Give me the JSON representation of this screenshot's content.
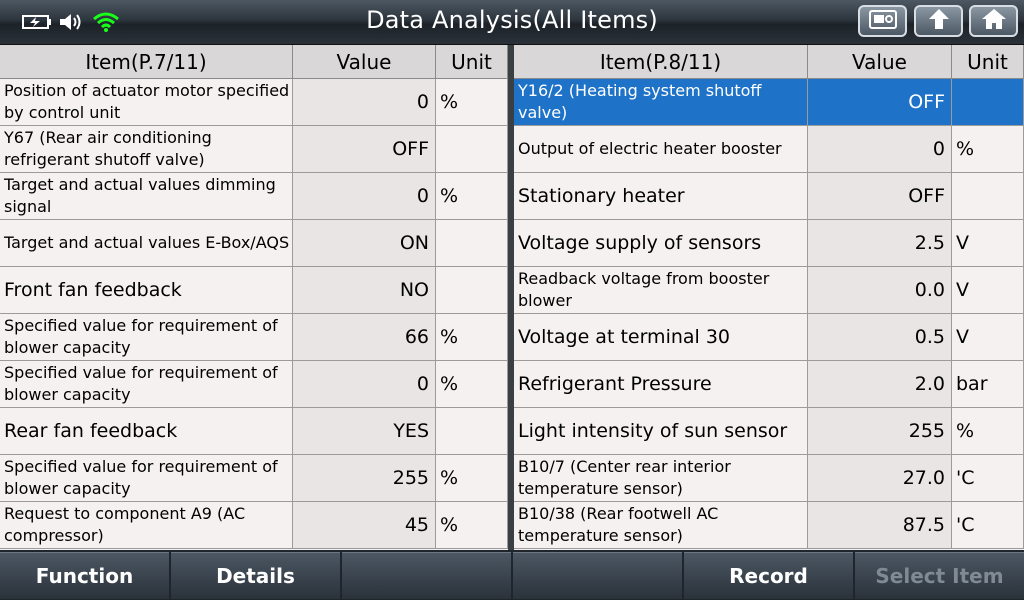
{
  "title": "Data Analysis(All Items)",
  "status": {
    "battery_icon": "battery-charging-icon",
    "volume_icon": "speaker-icon",
    "wifi_icon": "wifi-icon",
    "wifi_color": "#1aff1a"
  },
  "toolbar": {
    "screenshot_icon": "camera-icon",
    "back_icon": "up-arrow-icon",
    "home_icon": "home-icon"
  },
  "left_table": {
    "headers": {
      "item": "Item(P.7/11)",
      "value": "Value",
      "unit": "Unit"
    },
    "rows": [
      {
        "item": "Position of actuator motor specified by control unit",
        "value": "0",
        "unit": "%"
      },
      {
        "item": "Y67 (Rear air conditioning refrigerant shutoff valve)",
        "value": "OFF",
        "unit": ""
      },
      {
        "item": "Target and actual values dimming signal",
        "value": "0",
        "unit": "%"
      },
      {
        "item": "Target and actual values E-Box/AQS",
        "value": "ON",
        "unit": ""
      },
      {
        "item": "Front fan feedback",
        "value": "NO",
        "unit": ""
      },
      {
        "item": "Specified value for requirement of blower capacity",
        "value": "66",
        "unit": "%"
      },
      {
        "item": "Specified value for requirement of blower capacity",
        "value": "0",
        "unit": "%"
      },
      {
        "item": "Rear fan feedback",
        "value": "YES",
        "unit": ""
      },
      {
        "item": "Specified value for requirement of blower capacity",
        "value": "255",
        "unit": "%"
      },
      {
        "item": "Request to component A9 (AC compressor)",
        "value": "45",
        "unit": "%"
      }
    ]
  },
  "right_table": {
    "headers": {
      "item": "Item(P.8/11)",
      "value": "Value",
      "unit": "Unit"
    },
    "rows": [
      {
        "item": "Y16/2 (Heating system shutoff valve)",
        "value": "OFF",
        "unit": ""
      },
      {
        "item": "Output of electric heater booster",
        "value": "0",
        "unit": "%"
      },
      {
        "item": "Stationary heater",
        "value": "OFF",
        "unit": ""
      },
      {
        "item": "Voltage supply of sensors",
        "value": "2.5",
        "unit": "V"
      },
      {
        "item": "Readback voltage from booster blower",
        "value": "0.0",
        "unit": "V"
      },
      {
        "item": "Voltage at terminal 30",
        "value": "0.5",
        "unit": "V"
      },
      {
        "item": "Refrigerant Pressure",
        "value": "2.0",
        "unit": "bar"
      },
      {
        "item": "Light intensity of sun sensor",
        "value": "255",
        "unit": "%"
      },
      {
        "item": "B10/7 (Center rear interior temperature sensor)",
        "value": "27.0",
        "unit": "'C"
      },
      {
        "item": "B10/38 (Rear footwell AC temperature sensor)",
        "value": "87.5",
        "unit": "'C"
      }
    ]
  },
  "bottom_bar": {
    "buttons": [
      {
        "label": "Function"
      },
      {
        "label": "Details"
      },
      {
        "label": ""
      },
      {
        "label": ""
      },
      {
        "label": "Record"
      },
      {
        "label": "Select Item"
      }
    ]
  },
  "colors": {
    "selected_row": "#1e73c8"
  }
}
